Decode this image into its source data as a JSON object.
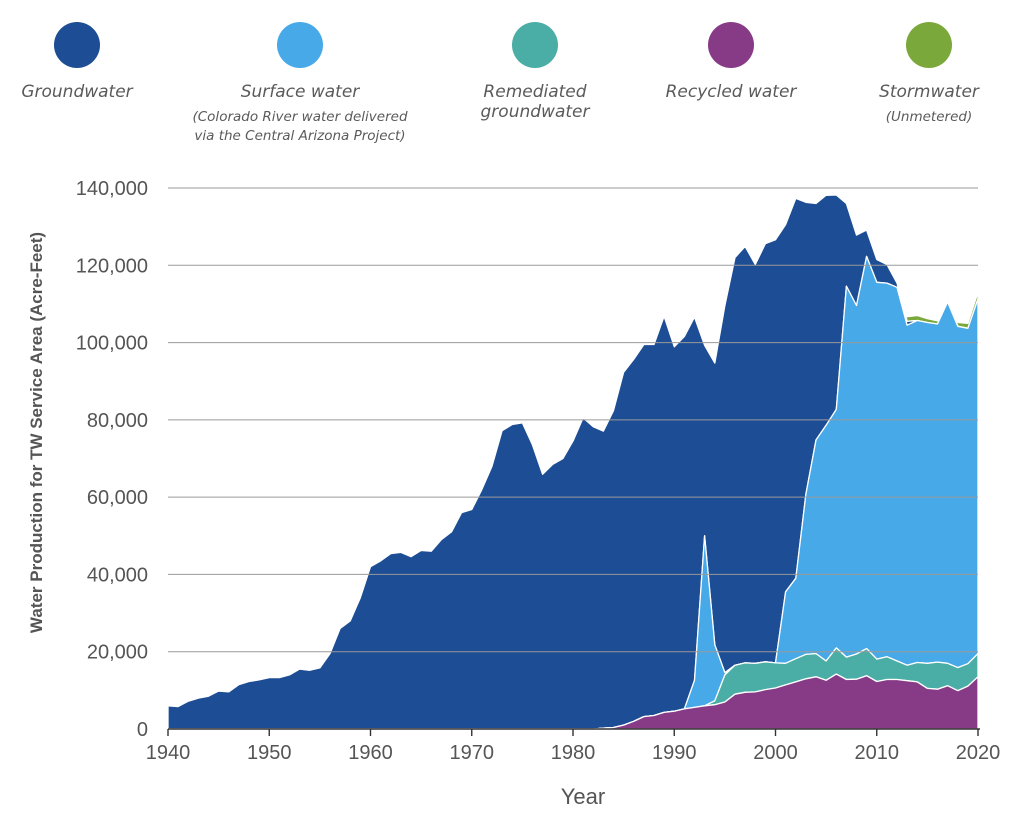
{
  "chart_data": {
    "type": "area",
    "stacked": true,
    "xlabel": "Year",
    "ylabel": "Water Production for TW Service Area (Acre-Feet)",
    "xlim": [
      1940,
      2020
    ],
    "ylim": [
      0,
      140000
    ],
    "x_ticks": [
      "1940",
      "1950",
      "1960",
      "1970",
      "1980",
      "1990",
      "2000",
      "2010",
      "2020"
    ],
    "y_ticks": [
      "0",
      "20,000",
      "40,000",
      "60,000",
      "80,000",
      "100,000",
      "120,000",
      "140,000"
    ],
    "grid": "horizontal",
    "legend_position": "top",
    "series": [
      {
        "name": "Groundwater",
        "color": "#1d4d94",
        "points": [
          [
            1940,
            6000
          ],
          [
            1941,
            5800
          ],
          [
            1942,
            7200
          ],
          [
            1943,
            8000
          ],
          [
            1944,
            8500
          ],
          [
            1945,
            9800
          ],
          [
            1946,
            9600
          ],
          [
            1947,
            11500
          ],
          [
            1948,
            12300
          ],
          [
            1949,
            12700
          ],
          [
            1950,
            13300
          ],
          [
            1951,
            13300
          ],
          [
            1952,
            14000
          ],
          [
            1953,
            15500
          ],
          [
            1954,
            15200
          ],
          [
            1955,
            15800
          ],
          [
            1956,
            19500
          ],
          [
            1957,
            26000
          ],
          [
            1958,
            28000
          ],
          [
            1959,
            34000
          ],
          [
            1960,
            42000
          ],
          [
            1961,
            43500
          ],
          [
            1962,
            45400
          ],
          [
            1963,
            45700
          ],
          [
            1964,
            44600
          ],
          [
            1965,
            46200
          ],
          [
            1966,
            46000
          ],
          [
            1967,
            49000
          ],
          [
            1968,
            51000
          ],
          [
            1969,
            56000
          ],
          [
            1970,
            56800
          ],
          [
            1971,
            62000
          ],
          [
            1972,
            68000
          ],
          [
            1973,
            77200
          ],
          [
            1974,
            78800
          ],
          [
            1975,
            79200
          ],
          [
            1976,
            73500
          ],
          [
            1977,
            65900
          ],
          [
            1978,
            68500
          ],
          [
            1979,
            70000
          ],
          [
            1980,
            74500
          ],
          [
            1981,
            80500
          ],
          [
            1982,
            78200
          ],
          [
            1983,
            76900
          ],
          [
            1984,
            82000
          ],
          [
            1985,
            91300
          ],
          [
            1986,
            93700
          ],
          [
            1987,
            96300
          ],
          [
            1988,
            96000
          ],
          [
            1989,
            102500
          ],
          [
            1990,
            94300
          ],
          [
            1991,
            96400
          ],
          [
            1992,
            94000
          ],
          [
            1993,
            49300
          ],
          [
            1994,
            72900
          ],
          [
            1995,
            95000
          ],
          [
            1996,
            105500
          ],
          [
            1997,
            107800
          ],
          [
            1998,
            103200
          ],
          [
            1999,
            108200
          ],
          [
            2000,
            109500
          ],
          [
            2001,
            95000
          ],
          [
            2002,
            98300
          ],
          [
            2003,
            75500
          ],
          [
            2004,
            61200
          ],
          [
            2005,
            59500
          ],
          [
            2006,
            55500
          ],
          [
            2007,
            21400
          ],
          [
            2008,
            18200
          ],
          [
            2009,
            6800
          ],
          [
            2010,
            5900
          ],
          [
            2011,
            4800
          ],
          [
            2012,
            1100
          ],
          [
            2013,
            1000
          ],
          [
            2014,
            0
          ],
          [
            2015,
            0
          ],
          [
            2016,
            0
          ],
          [
            2017,
            0
          ],
          [
            2018,
            0
          ],
          [
            2019,
            0
          ],
          [
            2020,
            0
          ]
        ]
      },
      {
        "name": "Surface water",
        "color": "#47a9e8",
        "points": [
          [
            1940,
            0
          ],
          [
            1990,
            0
          ],
          [
            1991,
            0
          ],
          [
            1992,
            7000
          ],
          [
            1993,
            44000
          ],
          [
            1994,
            14500
          ],
          [
            1995,
            600
          ],
          [
            1996,
            0
          ],
          [
            1997,
            0
          ],
          [
            1998,
            0
          ],
          [
            1999,
            0
          ],
          [
            2000,
            0
          ],
          [
            2001,
            18500
          ],
          [
            2002,
            20800
          ],
          [
            2003,
            41500
          ],
          [
            2004,
            55300
          ],
          [
            2005,
            61000
          ],
          [
            2006,
            61700
          ],
          [
            2007,
            96000
          ],
          [
            2008,
            90200
          ],
          [
            2009,
            101500
          ],
          [
            2010,
            97500
          ],
          [
            2011,
            96700
          ],
          [
            2012,
            96700
          ],
          [
            2013,
            88000
          ],
          [
            2014,
            88500
          ],
          [
            2015,
            88200
          ],
          [
            2016,
            87500
          ],
          [
            2017,
            93500
          ],
          [
            2018,
            88300
          ],
          [
            2019,
            86800
          ],
          [
            2020,
            91800
          ]
        ]
      },
      {
        "name": "Remediated groundwater",
        "color": "#4aaea6",
        "points": [
          [
            1940,
            0
          ],
          [
            1993,
            0
          ],
          [
            1994,
            1000
          ],
          [
            1995,
            7000
          ],
          [
            1996,
            7500
          ],
          [
            1997,
            7600
          ],
          [
            1998,
            7400
          ],
          [
            1999,
            7200
          ],
          [
            2000,
            6500
          ],
          [
            2001,
            5600
          ],
          [
            2002,
            6000
          ],
          [
            2003,
            6300
          ],
          [
            2004,
            6000
          ],
          [
            2005,
            5000
          ],
          [
            2006,
            6800
          ],
          [
            2007,
            5800
          ],
          [
            2008,
            6500
          ],
          [
            2009,
            7000
          ],
          [
            2010,
            5800
          ],
          [
            2011,
            5900
          ],
          [
            2012,
            4800
          ],
          [
            2013,
            4000
          ],
          [
            2014,
            5000
          ],
          [
            2015,
            6500
          ],
          [
            2016,
            7000
          ],
          [
            2017,
            5800
          ],
          [
            2018,
            6000
          ],
          [
            2019,
            5800
          ],
          [
            2020,
            6000
          ]
        ]
      },
      {
        "name": "Recycled water",
        "color": "#873b87",
        "points": [
          [
            1940,
            0
          ],
          [
            1982,
            0
          ],
          [
            1983,
            200
          ],
          [
            1984,
            400
          ],
          [
            1985,
            1000
          ],
          [
            1986,
            2000
          ],
          [
            1987,
            3200
          ],
          [
            1988,
            3500
          ],
          [
            1989,
            4300
          ],
          [
            1990,
            4600
          ],
          [
            1991,
            5200
          ],
          [
            1992,
            5600
          ],
          [
            1993,
            6000
          ],
          [
            1994,
            6300
          ],
          [
            1995,
            7000
          ],
          [
            1996,
            9000
          ],
          [
            1997,
            9500
          ],
          [
            1998,
            9600
          ],
          [
            1999,
            10200
          ],
          [
            2000,
            10600
          ],
          [
            2001,
            11400
          ],
          [
            2002,
            12200
          ],
          [
            2003,
            13000
          ],
          [
            2004,
            13500
          ],
          [
            2005,
            12600
          ],
          [
            2006,
            14200
          ],
          [
            2007,
            12800
          ],
          [
            2008,
            12900
          ],
          [
            2009,
            13800
          ],
          [
            2010,
            12300
          ],
          [
            2011,
            12800
          ],
          [
            2012,
            12800
          ],
          [
            2013,
            12500
          ],
          [
            2014,
            12200
          ],
          [
            2015,
            10500
          ],
          [
            2016,
            10300
          ],
          [
            2017,
            11200
          ],
          [
            2018,
            9900
          ],
          [
            2019,
            11100
          ],
          [
            2020,
            13500
          ]
        ]
      },
      {
        "name": "Stormwater",
        "color": "#7ba83a",
        "points": [
          [
            1940,
            0
          ],
          [
            2011,
            0
          ],
          [
            2012,
            500
          ],
          [
            2013,
            1200
          ],
          [
            2014,
            1300
          ],
          [
            2015,
            1000
          ],
          [
            2016,
            800
          ],
          [
            2017,
            700
          ],
          [
            2018,
            1000
          ],
          [
            2019,
            1300
          ],
          [
            2020,
            1700
          ]
        ]
      }
    ]
  },
  "legend": [
    {
      "label": "Groundwater",
      "sublabel": "",
      "color": "#1d4d94"
    },
    {
      "label": "Surface water",
      "sublabel": "(Colorado River water delivered\nvia the Central Arizona Project)",
      "color": "#47a9e8"
    },
    {
      "label": "Remediated\ngroundwater",
      "sublabel": "",
      "color": "#4aaea6"
    },
    {
      "label": "Recycled water",
      "sublabel": "",
      "color": "#873b87"
    },
    {
      "label": "Stormwater",
      "sublabel": "(Unmetered)",
      "color": "#7ba83a"
    }
  ]
}
